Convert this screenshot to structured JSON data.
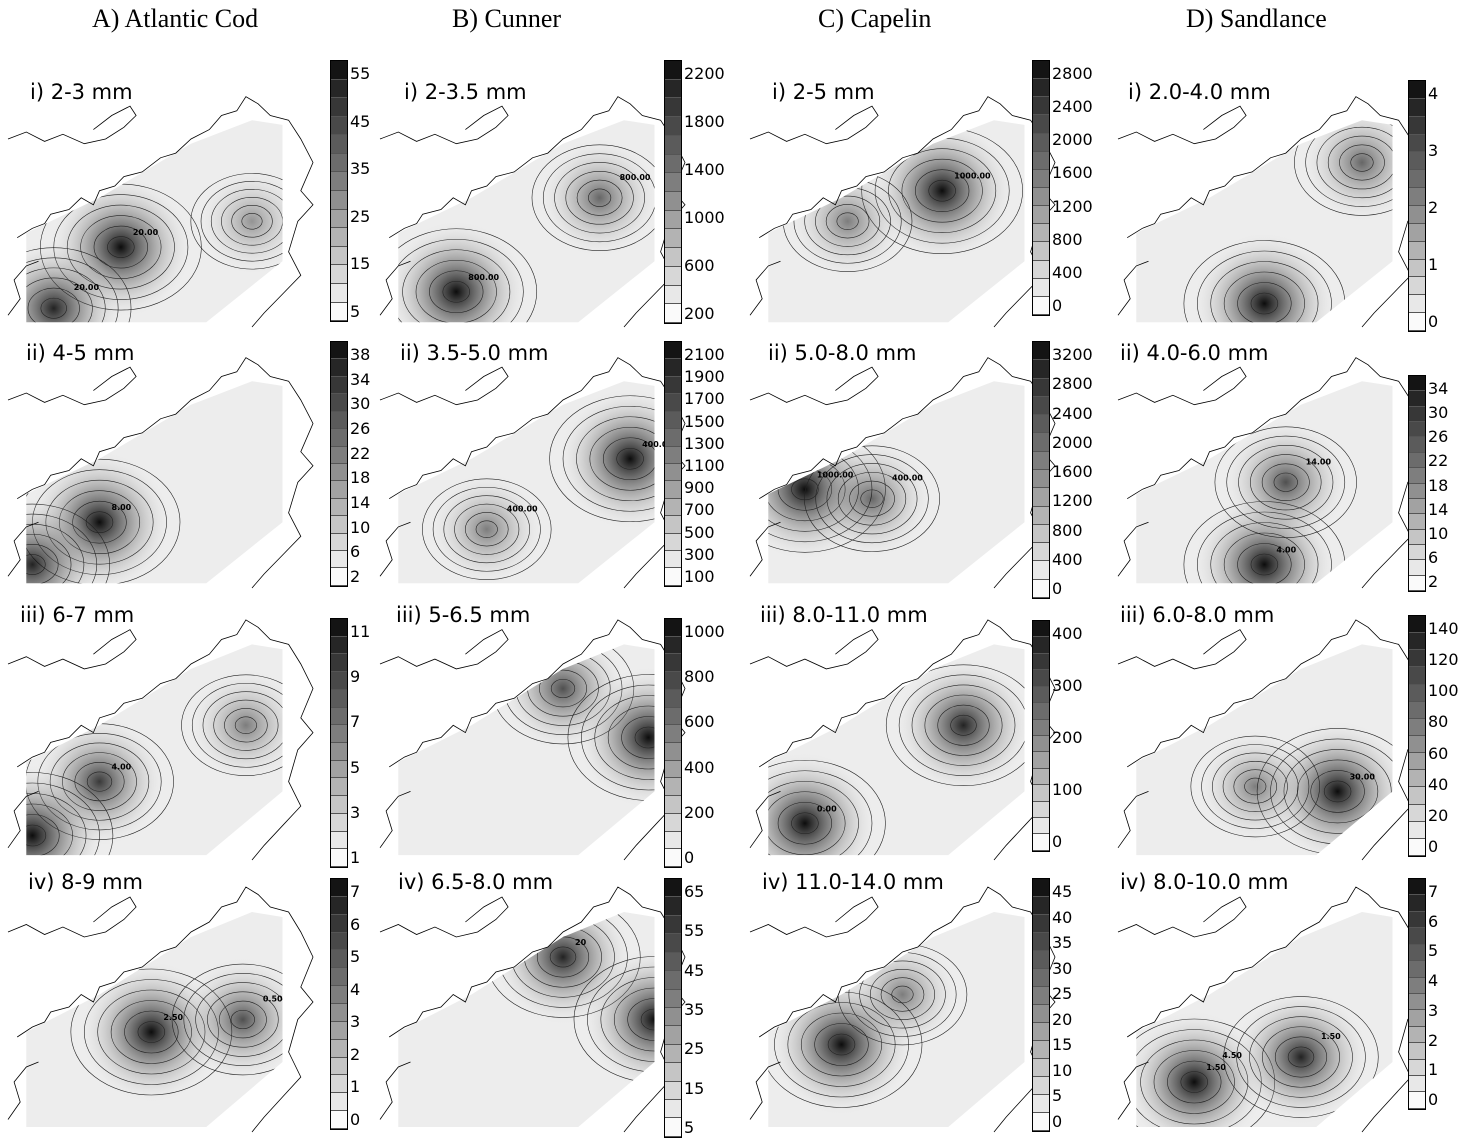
{
  "columns": [
    {
      "title": "A)  Atlantic Cod",
      "panels": [
        {
          "label": "i) 2-3 mm",
          "ticks": [
            "55",
            "45",
            "35",
            "25",
            "15",
            "5"
          ],
          "contour_labels": [
            "20.00",
            "20.00"
          ],
          "hotspots": [
            [
              0.37,
              0.66,
              1
            ],
            [
              0.15,
              0.92,
              0.9
            ],
            [
              0.8,
              0.55,
              0.4
            ]
          ]
        },
        {
          "label": "ii) 4-5 mm",
          "ticks": [
            "38",
            "34",
            "30",
            "26",
            "22",
            "18",
            "14",
            "10",
            "6",
            "2"
          ],
          "contour_labels": [
            "8.00"
          ],
          "hotspots": [
            [
              0.3,
              0.72,
              1
            ],
            [
              0.08,
              0.9,
              0.9
            ]
          ]
        },
        {
          "label": "iii) 6-7 mm",
          "ticks": [
            "11",
            "9",
            "7",
            "5",
            "3",
            "1"
          ],
          "contour_labels": [
            "4.00"
          ],
          "hotspots": [
            [
              0.3,
              0.68,
              0.8
            ],
            [
              0.08,
              0.9,
              1
            ],
            [
              0.78,
              0.45,
              0.5
            ]
          ]
        },
        {
          "label": "iv) 8-9 mm",
          "ticks": [
            "7",
            "6",
            "5",
            "4",
            "3",
            "2",
            "1",
            "0"
          ],
          "contour_labels": [
            "2.50",
            "0.50"
          ],
          "hotspots": [
            [
              0.47,
              0.6,
              1
            ],
            [
              0.77,
              0.55,
              0.7
            ]
          ]
        }
      ]
    },
    {
      "title": "B) Cunner",
      "panels": [
        {
          "label": "i) 2-3.5 mm",
          "ticks": [
            "2200",
            "1800",
            "1400",
            "1000",
            "600",
            "200"
          ],
          "contour_labels": [
            "800.00",
            "800.00"
          ],
          "hotspots": [
            [
              0.25,
              0.85,
              1
            ],
            [
              0.72,
              0.45,
              0.6
            ]
          ]
        },
        {
          "label": "ii) 3.5-5.0 mm",
          "ticks": [
            "2100",
            "1900",
            "1700",
            "1500",
            "1300",
            "1100",
            "900",
            "700",
            "500",
            "300",
            "100"
          ],
          "contour_labels": [
            "400.00",
            "400.00"
          ],
          "hotspots": [
            [
              0.82,
              0.45,
              1
            ],
            [
              0.35,
              0.75,
              0.5
            ]
          ]
        },
        {
          "label": "iii) 5-6.5 mm",
          "ticks": [
            "1000",
            "800",
            "600",
            "400",
            "200",
            "0"
          ],
          "contour_labels": [],
          "hotspots": [
            [
              0.6,
              0.3,
              0.7
            ],
            [
              0.88,
              0.5,
              1
            ]
          ]
        },
        {
          "label": "iv) 6.5-8.0 mm",
          "ticks": [
            "65",
            "55",
            "45",
            "35",
            "25",
            "15",
            "5"
          ],
          "contour_labels": [
            "20"
          ],
          "hotspots": [
            [
              0.6,
              0.3,
              0.9
            ],
            [
              0.9,
              0.55,
              1
            ]
          ]
        }
      ]
    },
    {
      "title": "C)  Capelin",
      "panels": [
        {
          "label": "i) 2-5 mm",
          "ticks": [
            "2800",
            "2400",
            "2000",
            "1600",
            "1200",
            "800",
            "400",
            "0"
          ],
          "contour_labels": [
            "1000.00"
          ],
          "hotspots": [
            [
              0.63,
              0.42,
              1
            ],
            [
              0.32,
              0.55,
              0.5
            ]
          ]
        },
        {
          "label": "ii) 5.0-8.0 mm",
          "ticks": [
            "3200",
            "2800",
            "2400",
            "2000",
            "1600",
            "1200",
            "800",
            "400",
            "0"
          ],
          "contour_labels": [
            "1000.00",
            "400.00"
          ],
          "hotspots": [
            [
              0.18,
              0.58,
              1
            ],
            [
              0.4,
              0.62,
              0.6
            ]
          ]
        },
        {
          "label": "iii) 8.0-11.0 mm",
          "ticks": [
            "400",
            "300",
            "200",
            "100",
            "0"
          ],
          "contour_labels": [
            "0.00"
          ],
          "hotspots": [
            [
              0.18,
              0.85,
              1
            ],
            [
              0.7,
              0.45,
              0.9
            ]
          ]
        },
        {
          "label": "iv) 11.0-14.0 mm",
          "ticks": [
            "45",
            "40",
            "35",
            "30",
            "25",
            "20",
            "15",
            "10",
            "5",
            "0"
          ],
          "contour_labels": [],
          "hotspots": [
            [
              0.3,
              0.65,
              1
            ],
            [
              0.5,
              0.45,
              0.5
            ]
          ]
        }
      ]
    },
    {
      "title": "D) Sandlance",
      "panels": [
        {
          "label": "i) 2.0-4.0 mm",
          "ticks": [
            "4",
            "3",
            "2",
            "1",
            "0"
          ],
          "contour_labels": [],
          "hotspots": [
            [
              0.48,
              0.9,
              1
            ],
            [
              0.8,
              0.3,
              0.6
            ]
          ]
        },
        {
          "label": "ii) 4.0-6.0 mm",
          "ticks": [
            "34",
            "30",
            "26",
            "22",
            "18",
            "14",
            "10",
            "6",
            "2"
          ],
          "contour_labels": [
            "4.00",
            "14.00"
          ],
          "hotspots": [
            [
              0.48,
              0.9,
              1
            ],
            [
              0.55,
              0.55,
              0.7
            ]
          ]
        },
        {
          "label": "iii) 6.0-8.0 mm",
          "ticks": [
            "140",
            "120",
            "100",
            "80",
            "60",
            "40",
            "20",
            "0"
          ],
          "contour_labels": [
            "30.00"
          ],
          "hotspots": [
            [
              0.72,
              0.72,
              1
            ],
            [
              0.45,
              0.7,
              0.5
            ]
          ]
        },
        {
          "label": "iv) 8.0-10.0 mm",
          "ticks": [
            "7",
            "6",
            "5",
            "4",
            "3",
            "2",
            "1",
            "0"
          ],
          "contour_labels": [
            "1.50",
            "1.50",
            "4.50"
          ],
          "hotspots": [
            [
              0.25,
              0.8,
              1
            ],
            [
              0.6,
              0.7,
              0.9
            ]
          ]
        }
      ]
    }
  ]
}
